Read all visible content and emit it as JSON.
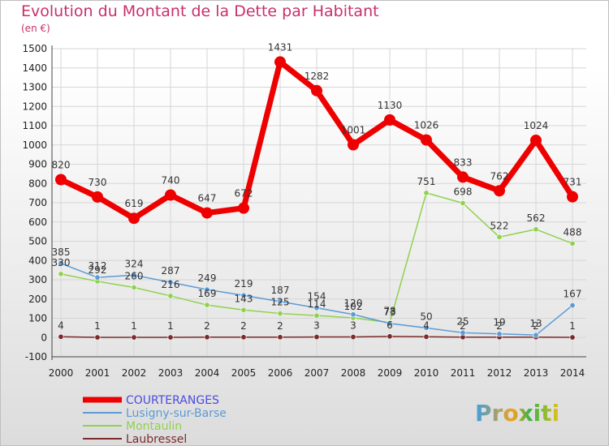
{
  "title": "Evolution du Montant de la Dette par Habitant",
  "unit": "(en €)",
  "brand": "Proxiti",
  "chart_data": {
    "type": "line",
    "x": [
      2000,
      2001,
      2002,
      2003,
      2004,
      2005,
      2006,
      2007,
      2008,
      2009,
      2010,
      2011,
      2012,
      2013,
      2014
    ],
    "ylim": [
      -100,
      1500
    ],
    "yticks": [
      -100,
      0,
      100,
      200,
      300,
      400,
      500,
      600,
      700,
      800,
      900,
      1000,
      1100,
      1200,
      1300,
      1400,
      1500
    ],
    "grid": true,
    "legend_position": "bottom-left",
    "series": [
      {
        "name": "COURTERANGES",
        "color": "#ee0000",
        "legend_color": "#4b4bdf",
        "width": 7,
        "values": [
          820,
          730,
          619,
          740,
          647,
          672,
          1431,
          1282,
          1001,
          1130,
          1026,
          833,
          762,
          1024,
          731
        ],
        "labels": [
          "820",
          "730",
          "619",
          "740",
          "647",
          "672",
          "1431",
          "1282",
          "1001",
          "1130",
          "1026",
          "833",
          "762",
          "1024",
          "731"
        ]
      },
      {
        "name": "Lusigny-sur-Barse",
        "color": "#5b9bd5",
        "legend_color": "#5b9bd5",
        "width": 1.5,
        "values": [
          385,
          312,
          324,
          287,
          249,
          219,
          187,
          154,
          120,
          73,
          50,
          25,
          19,
          13,
          167
        ],
        "labels": [
          "385",
          "312",
          "324",
          "287",
          "249",
          "219",
          "187",
          "154",
          "120",
          "73",
          "50",
          "25",
          "19",
          "13",
          "167"
        ]
      },
      {
        "name": "Montaulin",
        "color": "#8fd14f",
        "legend_color": "#8fd14f",
        "width": 1.5,
        "values": [
          330,
          292,
          260,
          216,
          169,
          143,
          125,
          114,
          102,
          78,
          751,
          698,
          522,
          562,
          488
        ],
        "labels": [
          "330",
          "292",
          "260",
          "216",
          "169",
          "143",
          "125",
          "114",
          "102",
          "78",
          "751",
          "698",
          "522",
          "562",
          "488"
        ]
      },
      {
        "name": "Laubressel",
        "color": "#7b2b2b",
        "legend_color": "#7b2b2b",
        "width": 1.5,
        "values": [
          4,
          1,
          1,
          1,
          2,
          2,
          2,
          3,
          3,
          6,
          4,
          2,
          2,
          2,
          1
        ],
        "labels": [
          "4",
          "1",
          "1",
          "1",
          "2",
          "2",
          "2",
          "3",
          "3",
          "6",
          "4",
          "2",
          "2",
          "2",
          "1"
        ]
      }
    ]
  }
}
